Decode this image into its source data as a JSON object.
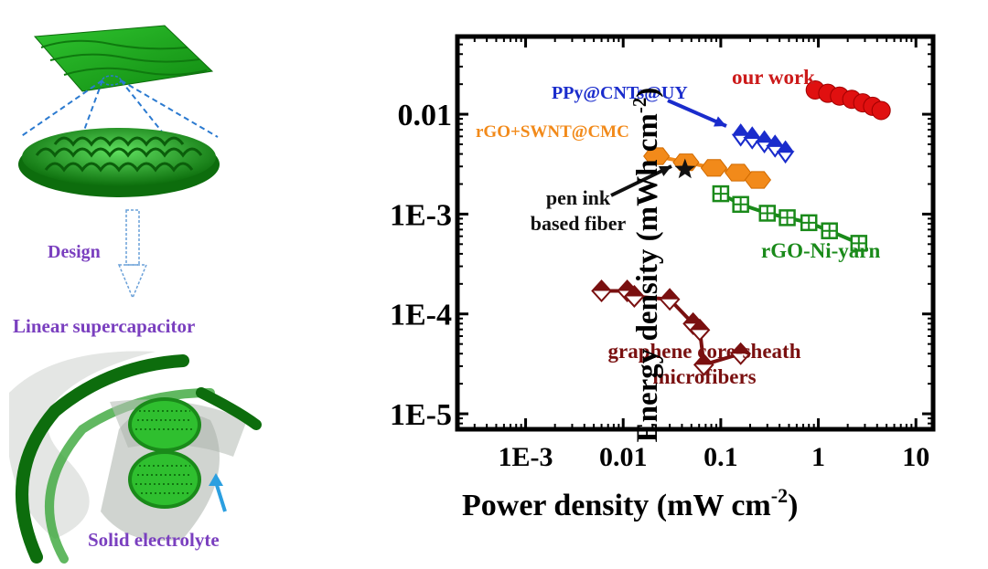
{
  "illustration": {
    "design_label": "Design",
    "device_label": "Linear supercapacitor",
    "electrolyte_label": "Solid electrolyte"
  },
  "colors": {
    "green": "#1a8a1a",
    "purple": "#7a3fbf",
    "blue": "#1a2ccc",
    "red": "#cc1a1a",
    "orange": "#f28a1a",
    "maroon": "#7a1010",
    "arrow_blue": "#2b9fe0"
  },
  "chart_data": {
    "type": "scatter",
    "xlabel": "Power density (mW cm",
    "xlabel_sup": "-2",
    "xlabel_end": ")",
    "ylabel": "Energy density (mWh cm",
    "ylabel_sup": "-2",
    "ylabel_end": ")",
    "x_scale": "log",
    "y_scale": "log",
    "xlim": [
      0.0002,
      15
    ],
    "ylim": [
      7e-06,
      0.06
    ],
    "x_ticks": [
      {
        "value": 0.001,
        "label": "1E-3"
      },
      {
        "value": 0.01,
        "label": "0.01"
      },
      {
        "value": 0.1,
        "label": "0.1"
      },
      {
        "value": 1,
        "label": "1"
      },
      {
        "value": 10,
        "label": "10"
      }
    ],
    "y_ticks": [
      {
        "value": 1e-05,
        "label": "1E-5"
      },
      {
        "value": 0.0001,
        "label": "1E-4"
      },
      {
        "value": 0.001,
        "label": "1E-3"
      },
      {
        "value": 0.01,
        "label": "0.01"
      }
    ],
    "series": [
      {
        "name": "our work",
        "color": "#e01010",
        "marker": "circle",
        "x": [
          0.93,
          1.25,
          1.65,
          2.2,
          2.85,
          3.6,
          4.4
        ],
        "y": [
          0.0175,
          0.0162,
          0.0152,
          0.0141,
          0.013,
          0.012,
          0.0109
        ]
      },
      {
        "name": "PPy@CNTs@UY",
        "color": "#1a2ccc",
        "marker": "diamond",
        "x": [
          0.16,
          0.21,
          0.28,
          0.36,
          0.46
        ],
        "y": [
          0.0062,
          0.0058,
          0.0053,
          0.0048,
          0.0042
        ]
      },
      {
        "name": "rGO+SWNT@CMC",
        "color": "#f28a1a",
        "marker": "hexagon",
        "x": [
          0.022,
          0.044,
          0.085,
          0.15,
          0.24
        ],
        "y": [
          0.0038,
          0.0033,
          0.0029,
          0.0026,
          0.0022
        ]
      },
      {
        "name": "rGO-Ni-yarn",
        "color": "#1a8a1a",
        "marker": "square",
        "x": [
          0.1,
          0.16,
          0.3,
          0.48,
          0.8,
          1.3,
          2.6
        ],
        "y": [
          0.0016,
          0.00125,
          0.00102,
          0.00092,
          0.00082,
          0.00068,
          0.00051
        ]
      },
      {
        "name": "graphene core-sheath microfibers",
        "color": "#7a1010",
        "marker": "diamond-split",
        "x": [
          0.006,
          0.011,
          0.013,
          0.03,
          0.052,
          0.061,
          0.067,
          0.16
        ],
        "y": [
          0.00017,
          0.00017,
          0.00015,
          0.00014,
          8e-05,
          6.9e-05,
          3.1e-05,
          4e-05
        ]
      },
      {
        "name": "pen ink based fiber",
        "color": "#111111",
        "marker": "star",
        "x": [
          0.043
        ],
        "y": [
          0.0028
        ]
      }
    ],
    "annotations": [
      {
        "text": "our work",
        "color": "#cc1a1a"
      },
      {
        "text": "PPy@CNTs@UY",
        "color": "#1a2ccc"
      },
      {
        "text": "rGO+SWNT@CMC",
        "color": "#f28a1a"
      },
      {
        "text": "pen ink",
        "color": "#111111"
      },
      {
        "text": "based fiber",
        "color": "#111111"
      },
      {
        "text": "rGO-Ni-yarn",
        "color": "#1a8a1a"
      },
      {
        "text": "graphene core-sheath",
        "color": "#7a1010"
      },
      {
        "text": "microfibers",
        "color": "#7a1010"
      }
    ]
  }
}
